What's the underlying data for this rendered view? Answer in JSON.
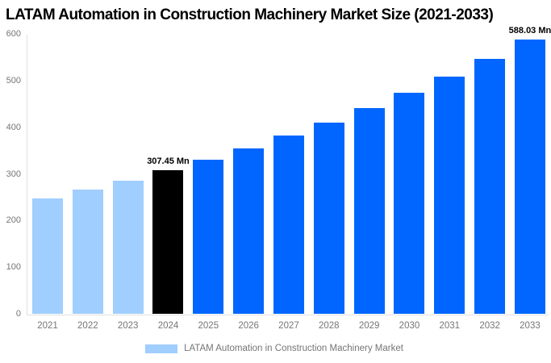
{
  "title": "LATAM Automation in Construction Machinery Market Size (2021-2033)",
  "legend": {
    "label": "LATAM Automation in Construction Machinery Market",
    "swatch_color": "#A0CEFF"
  },
  "colors": {
    "historical_bar": "#A0CEFF",
    "highlight_bar": "#000000",
    "forecast_bar": "#0066FF",
    "axis_text": "#757575",
    "axis_line": "#E0E0E0",
    "title_text": "#000000",
    "background": "#FFFFFF"
  },
  "chart_data": {
    "type": "bar",
    "title": "LATAM Automation in Construction Machinery Market Size (2021-2033)",
    "xlabel": "",
    "ylabel": "",
    "unit": "Mn",
    "categories": [
      "2021",
      "2022",
      "2023",
      "2024",
      "2025",
      "2026",
      "2027",
      "2028",
      "2029",
      "2030",
      "2031",
      "2032",
      "2033"
    ],
    "values": [
      247.7,
      266.2,
      286.1,
      307.45,
      330.4,
      355.1,
      381.6,
      410.1,
      440.8,
      473.7,
      509.1,
      547.1,
      588.03
    ],
    "bar_roles": [
      "historical",
      "historical",
      "historical",
      "highlight",
      "forecast",
      "forecast",
      "forecast",
      "forecast",
      "forecast",
      "forecast",
      "forecast",
      "forecast",
      "forecast"
    ],
    "role_colors": {
      "historical": "#A0CEFF",
      "highlight": "#000000",
      "forecast": "#0066FF"
    },
    "value_labels": [
      {
        "category": "2024",
        "index": 3,
        "text": "307.45 Mn"
      },
      {
        "category": "2033",
        "index": 12,
        "text": "588.03 Mn"
      }
    ],
    "ylim": [
      0,
      600
    ],
    "yticks": [
      0,
      100,
      200,
      300,
      400,
      500,
      600
    ],
    "grid": false,
    "legend_entries": [
      "LATAM Automation in Construction Machinery Market"
    ],
    "legend_position": "bottom"
  }
}
